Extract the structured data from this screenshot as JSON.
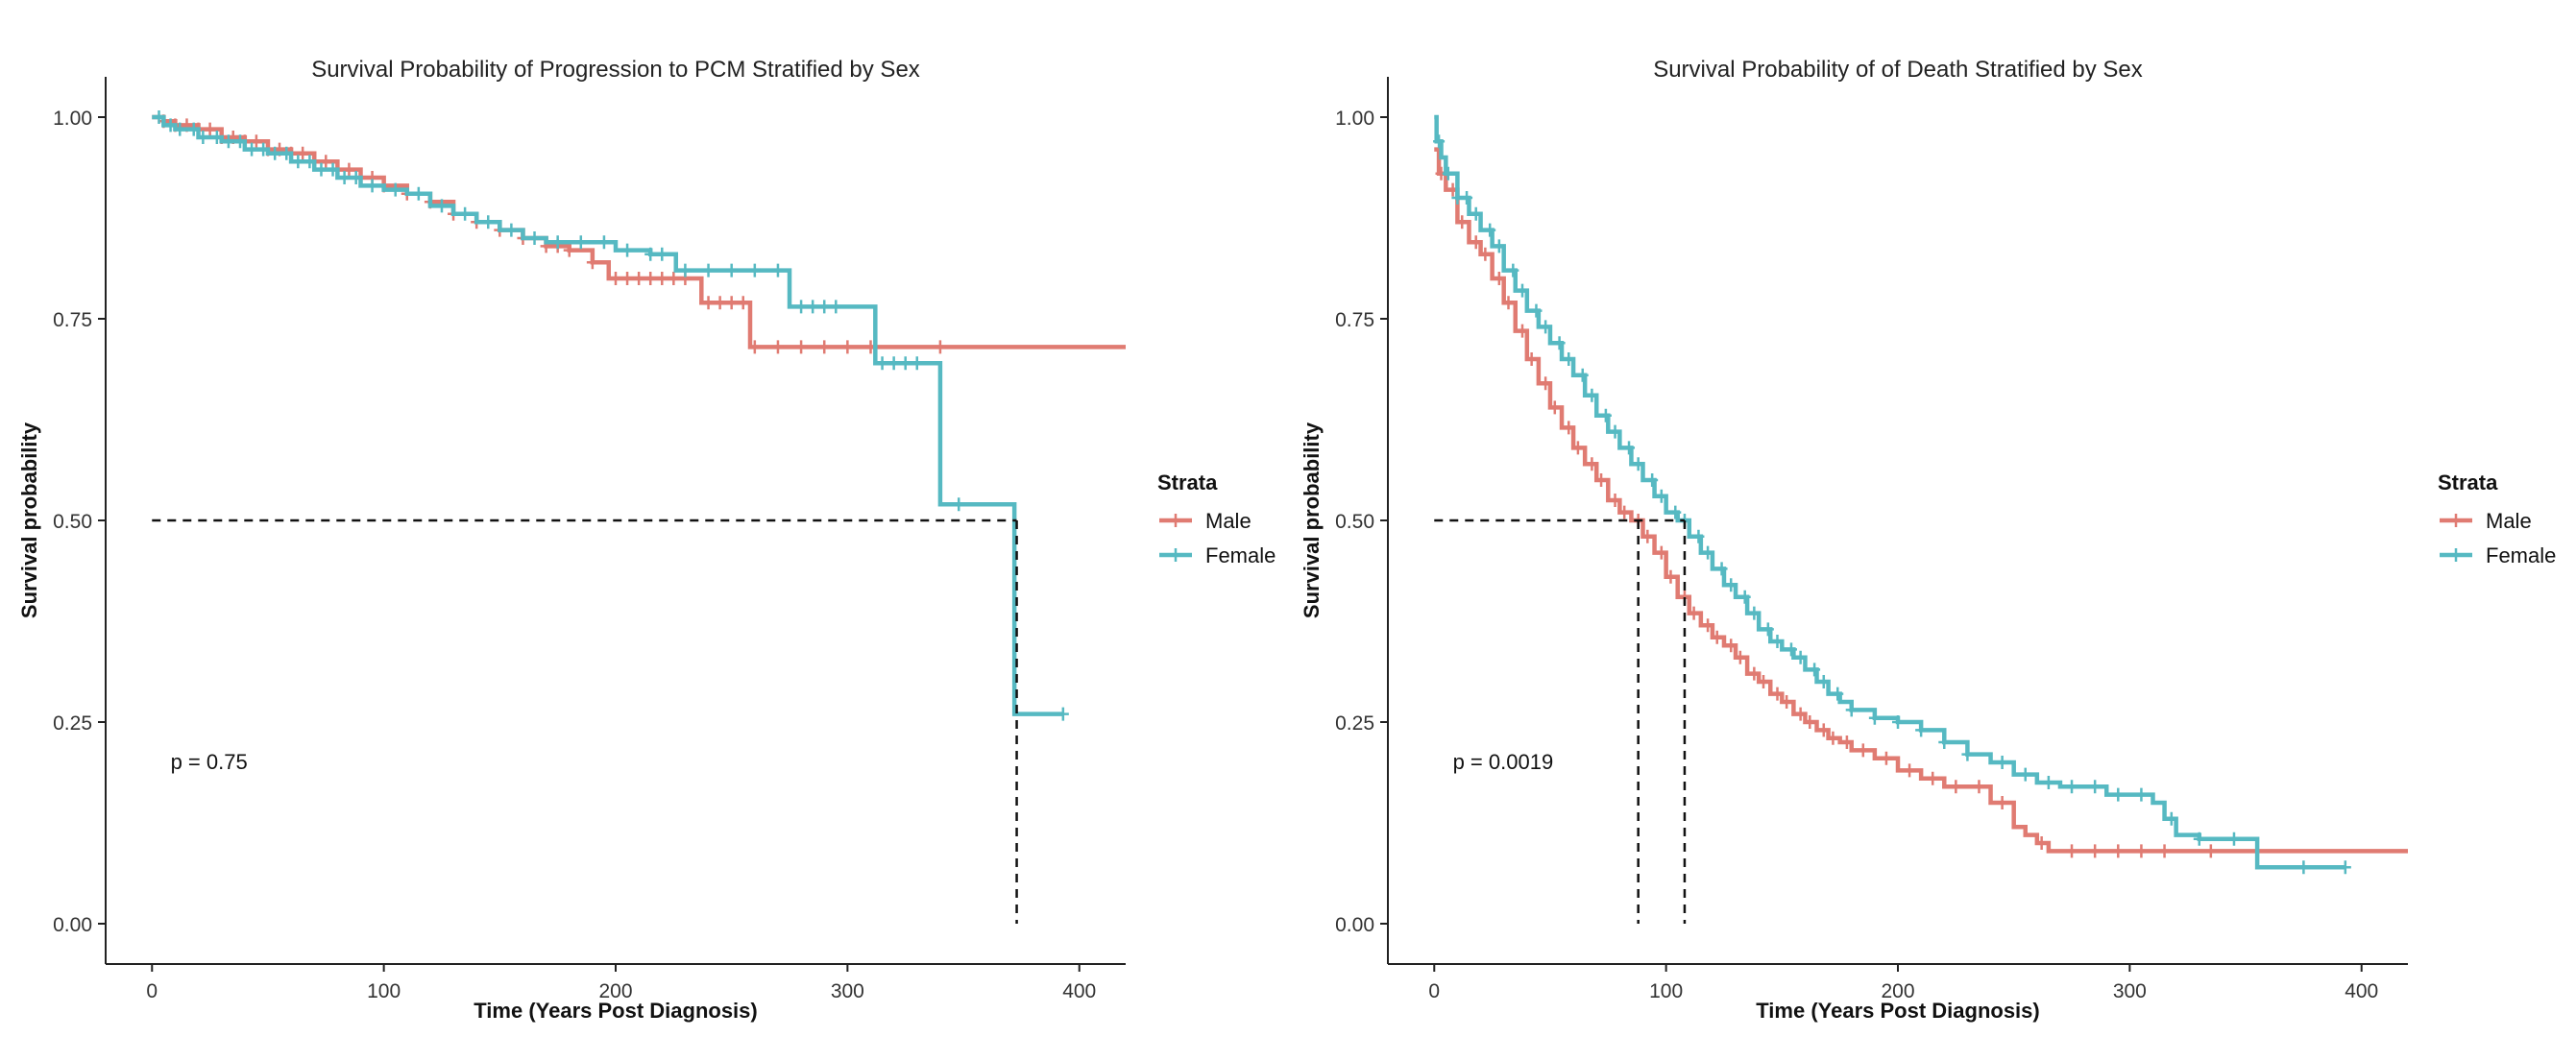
{
  "colors": {
    "male": "#E07B72",
    "female": "#56B9C2",
    "axis": "#222222",
    "ref": "#111111"
  },
  "chart_data": [
    {
      "type": "line",
      "subtype": "kaplan-meier",
      "title": "Survival Probability of Progression to PCM Stratified by Sex",
      "xlabel": "Time (Years Post Diagnosis)",
      "ylabel": "Survival probability",
      "xlim": [
        -20,
        420
      ],
      "ylim": [
        -0.05,
        1.05
      ],
      "xticks": [
        0,
        100,
        200,
        300,
        400
      ],
      "xtick_labels": [
        "0",
        "100",
        "200",
        "300",
        "400"
      ],
      "yticks": [
        0,
        0.25,
        0.5,
        0.75,
        1.0
      ],
      "ytick_labels": [
        "0.00",
        "0.25",
        "0.50",
        "0.75",
        "1.00"
      ],
      "pvalue": "p = 0.75",
      "pvalue_pos": [
        8,
        0.2
      ],
      "legend": {
        "title": "Strata",
        "entries": [
          "Male",
          "Female"
        ]
      },
      "median_lines": [
        {
          "x": 373,
          "y": 0.5
        }
      ],
      "series": [
        {
          "name": "Male",
          "step_x": [
            0,
            5,
            10,
            20,
            30,
            40,
            50,
            60,
            70,
            80,
            90,
            100,
            110,
            120,
            130,
            140,
            150,
            160,
            170,
            180,
            190,
            197,
            210,
            237,
            258
          ],
          "step_y": [
            1.0,
            0.995,
            0.99,
            0.985,
            0.975,
            0.97,
            0.96,
            0.955,
            0.945,
            0.935,
            0.925,
            0.915,
            0.905,
            0.895,
            0.88,
            0.87,
            0.86,
            0.85,
            0.84,
            0.835,
            0.82,
            0.8,
            0.8,
            0.77,
            0.715
          ],
          "x_end": 420,
          "censor_x": [
            5,
            10,
            15,
            20,
            25,
            30,
            35,
            40,
            45,
            50,
            55,
            60,
            65,
            70,
            75,
            80,
            85,
            90,
            95,
            100,
            110,
            120,
            130,
            140,
            150,
            160,
            170,
            175,
            180,
            190,
            200,
            205,
            210,
            215,
            220,
            225,
            230,
            240,
            245,
            250,
            255,
            260,
            270,
            280,
            290,
            300,
            310,
            340
          ]
        },
        {
          "name": "Female",
          "step_x": [
            0,
            5,
            10,
            20,
            30,
            40,
            50,
            60,
            70,
            80,
            90,
            100,
            110,
            120,
            130,
            140,
            150,
            160,
            170,
            180,
            200,
            215,
            226,
            275,
            312,
            340,
            372
          ],
          "step_y": [
            1.0,
            0.99,
            0.985,
            0.975,
            0.97,
            0.96,
            0.955,
            0.945,
            0.935,
            0.925,
            0.915,
            0.91,
            0.905,
            0.89,
            0.88,
            0.87,
            0.86,
            0.85,
            0.845,
            0.845,
            0.835,
            0.83,
            0.81,
            0.765,
            0.695,
            0.52,
            0.26
          ],
          "x_end": 393,
          "censor_x": [
            3,
            8,
            12,
            18,
            22,
            28,
            33,
            38,
            43,
            48,
            53,
            58,
            63,
            68,
            73,
            78,
            83,
            88,
            95,
            105,
            115,
            125,
            135,
            145,
            155,
            165,
            175,
            185,
            195,
            205,
            215,
            220,
            230,
            240,
            250,
            260,
            270,
            280,
            285,
            290,
            295,
            315,
            320,
            325,
            330,
            348,
            393
          ]
        }
      ]
    },
    {
      "type": "line",
      "subtype": "kaplan-meier",
      "title": "Survival Probability of of Death Stratified by Sex",
      "xlabel": "Time (Years Post Diagnosis)",
      "ylabel": "Survival probability",
      "xlim": [
        -20,
        420
      ],
      "ylim": [
        -0.05,
        1.05
      ],
      "xticks": [
        0,
        100,
        200,
        300,
        400
      ],
      "xtick_labels": [
        "0",
        "100",
        "200",
        "300",
        "400"
      ],
      "yticks": [
        0,
        0.25,
        0.5,
        0.75,
        1.0
      ],
      "ytick_labels": [
        "0.00",
        "0.25",
        "0.50",
        "0.75",
        "1.00"
      ],
      "pvalue": "p = 0.0019",
      "pvalue_pos": [
        8,
        0.2
      ],
      "legend": {
        "title": "Strata",
        "entries": [
          "Male",
          "Female"
        ]
      },
      "median_lines": [
        {
          "x": 88,
          "y": 0.5
        },
        {
          "x": 108,
          "y": 0.5
        }
      ],
      "series": [
        {
          "name": "Male",
          "step_x": [
            0,
            2,
            5,
            10,
            15,
            20,
            25,
            30,
            35,
            40,
            45,
            50,
            55,
            60,
            65,
            70,
            75,
            80,
            85,
            90,
            95,
            100,
            105,
            110,
            115,
            120,
            125,
            130,
            135,
            140,
            145,
            150,
            155,
            160,
            165,
            170,
            175,
            180,
            190,
            200,
            210,
            220,
            230,
            240,
            250,
            255,
            260,
            265,
            270,
            275,
            280
          ],
          "step_y": [
            0.96,
            0.93,
            0.91,
            0.87,
            0.845,
            0.83,
            0.8,
            0.77,
            0.735,
            0.7,
            0.67,
            0.64,
            0.615,
            0.59,
            0.57,
            0.55,
            0.525,
            0.51,
            0.5,
            0.48,
            0.46,
            0.43,
            0.405,
            0.385,
            0.37,
            0.355,
            0.345,
            0.33,
            0.31,
            0.3,
            0.285,
            0.275,
            0.26,
            0.25,
            0.24,
            0.23,
            0.225,
            0.215,
            0.205,
            0.19,
            0.18,
            0.17,
            0.17,
            0.15,
            0.12,
            0.11,
            0.1,
            0.09,
            0.09,
            0.09,
            0.09
          ],
          "x_end": 420,
          "censor_x": [
            3,
            8,
            12,
            18,
            22,
            28,
            32,
            38,
            42,
            48,
            52,
            58,
            62,
            68,
            72,
            78,
            82,
            88,
            92,
            98,
            102,
            108,
            112,
            118,
            122,
            128,
            132,
            138,
            142,
            148,
            152,
            158,
            162,
            168,
            172,
            178,
            185,
            195,
            205,
            215,
            225,
            235,
            245,
            262,
            275,
            285,
            295,
            305,
            315,
            335
          ]
        },
        {
          "name": "Female",
          "step_x": [
            0,
            1,
            3,
            5,
            10,
            15,
            20,
            25,
            30,
            35,
            40,
            45,
            50,
            55,
            60,
            65,
            70,
            75,
            80,
            85,
            90,
            95,
            100,
            105,
            110,
            115,
            120,
            125,
            130,
            135,
            140,
            145,
            150,
            155,
            160,
            165,
            170,
            175,
            180,
            190,
            200,
            210,
            220,
            230,
            240,
            250,
            260,
            270,
            280,
            290,
            300,
            310,
            315,
            320,
            330,
            340,
            355
          ],
          "step_y": [
            1.0,
            0.97,
            0.95,
            0.93,
            0.9,
            0.88,
            0.86,
            0.84,
            0.81,
            0.785,
            0.76,
            0.74,
            0.72,
            0.7,
            0.68,
            0.655,
            0.63,
            0.61,
            0.59,
            0.57,
            0.55,
            0.53,
            0.51,
            0.5,
            0.48,
            0.46,
            0.44,
            0.42,
            0.405,
            0.385,
            0.365,
            0.35,
            0.34,
            0.33,
            0.315,
            0.3,
            0.285,
            0.275,
            0.265,
            0.255,
            0.25,
            0.24,
            0.225,
            0.21,
            0.2,
            0.185,
            0.175,
            0.17,
            0.17,
            0.16,
            0.16,
            0.15,
            0.13,
            0.11,
            0.105,
            0.105,
            0.07
          ],
          "x_end": 393,
          "censor_x": [
            2,
            6,
            10,
            14,
            18,
            24,
            28,
            34,
            38,
            44,
            48,
            54,
            58,
            64,
            68,
            74,
            78,
            84,
            88,
            94,
            98,
            104,
            108,
            114,
            118,
            124,
            128,
            134,
            138,
            144,
            148,
            154,
            158,
            164,
            168,
            174,
            180,
            190,
            200,
            210,
            220,
            230,
            245,
            255,
            265,
            275,
            285,
            295,
            305,
            318,
            330,
            345,
            375,
            393
          ]
        }
      ]
    }
  ]
}
